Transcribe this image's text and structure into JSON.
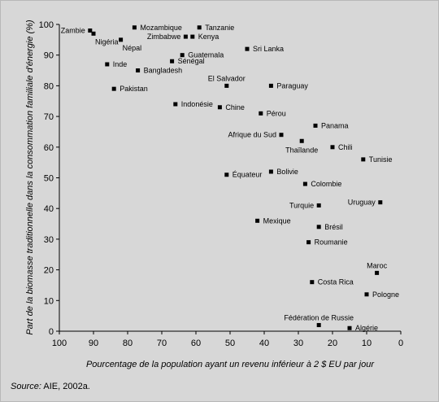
{
  "chart_data": {
    "type": "scatter",
    "xlabel": "Pourcentage de la population ayant un revenu inférieur à 2 $ EU par jour",
    "ylabel": "Part de la biomasse traditionnelle dans la consommation familiale d'énergie (%)",
    "xlim": [
      100,
      0
    ],
    "ylim": [
      0,
      100
    ],
    "x_reversed": true,
    "x_ticks": [
      "100",
      "90",
      "80",
      "70",
      "60",
      "50",
      "40",
      "30",
      "20",
      "10",
      "0"
    ],
    "y_ticks": [
      "0",
      "10",
      "20",
      "30",
      "40",
      "50",
      "60",
      "70",
      "80",
      "90",
      "100"
    ],
    "grid": false,
    "marker_color": "#000000",
    "background_color": "#d7d7d7",
    "points": [
      {
        "name": "Zambie",
        "x": 91,
        "y": 98,
        "label_side": "left"
      },
      {
        "name": "Nigéria",
        "x": 90,
        "y": 97,
        "label_side": "below-right"
      },
      {
        "name": "Mozambique",
        "x": 78,
        "y": 99,
        "label_side": "right"
      },
      {
        "name": "Tanzanie",
        "x": 59,
        "y": 99,
        "label_side": "right"
      },
      {
        "name": "Népal",
        "x": 82,
        "y": 95,
        "label_side": "below-right"
      },
      {
        "name": "Zimbabwe",
        "x": 63,
        "y": 96,
        "label_side": "left"
      },
      {
        "name": "Kenya",
        "x": 61,
        "y": 96,
        "label_side": "right"
      },
      {
        "name": "Sri Lanka",
        "x": 45,
        "y": 92,
        "label_side": "right"
      },
      {
        "name": "Guatemala",
        "x": 64,
        "y": 90,
        "label_side": "right"
      },
      {
        "name": "Inde",
        "x": 86,
        "y": 87,
        "label_side": "right"
      },
      {
        "name": "Sénégal",
        "x": 67,
        "y": 88,
        "label_side": "right"
      },
      {
        "name": "Bangladesh",
        "x": 77,
        "y": 85,
        "label_side": "right"
      },
      {
        "name": "Pakistan",
        "x": 84,
        "y": 79,
        "label_side": "right"
      },
      {
        "name": "El Salvador",
        "x": 51,
        "y": 80,
        "label_side": "above"
      },
      {
        "name": "Paraguay",
        "x": 38,
        "y": 80,
        "label_side": "right"
      },
      {
        "name": "Indonésie",
        "x": 66,
        "y": 74,
        "label_side": "right"
      },
      {
        "name": "Chine",
        "x": 53,
        "y": 73,
        "label_side": "right"
      },
      {
        "name": "Pérou",
        "x": 41,
        "y": 71,
        "label_side": "right"
      },
      {
        "name": "Panama",
        "x": 25,
        "y": 67,
        "label_side": "right"
      },
      {
        "name": "Afrique du Sud",
        "x": 35,
        "y": 64,
        "label_side": "left"
      },
      {
        "name": "Thaïlande",
        "x": 29,
        "y": 62,
        "label_side": "below"
      },
      {
        "name": "Chili",
        "x": 20,
        "y": 60,
        "label_side": "right"
      },
      {
        "name": "Tunisie",
        "x": 11,
        "y": 56,
        "label_side": "right"
      },
      {
        "name": "Bolivie",
        "x": 38,
        "y": 52,
        "label_side": "right"
      },
      {
        "name": "Équateur",
        "x": 51,
        "y": 51,
        "label_side": "right"
      },
      {
        "name": "Colombie",
        "x": 28,
        "y": 48,
        "label_side": "right"
      },
      {
        "name": "Uruguay",
        "x": 6,
        "y": 42,
        "label_side": "left"
      },
      {
        "name": "Turquie",
        "x": 24,
        "y": 41,
        "label_side": "left"
      },
      {
        "name": "Mexique",
        "x": 42,
        "y": 36,
        "label_side": "right"
      },
      {
        "name": "Brésil",
        "x": 24,
        "y": 34,
        "label_side": "right"
      },
      {
        "name": "Roumanie",
        "x": 27,
        "y": 29,
        "label_side": "right"
      },
      {
        "name": "Maroc",
        "x": 7,
        "y": 19,
        "label_side": "above"
      },
      {
        "name": "Costa Rica",
        "x": 26,
        "y": 16,
        "label_side": "right"
      },
      {
        "name": "Pologne",
        "x": 10,
        "y": 12,
        "label_side": "right"
      },
      {
        "name": "Fédération de Russie",
        "x": 24,
        "y": 2,
        "label_side": "above"
      },
      {
        "name": "Algérie",
        "x": 15,
        "y": 1,
        "label_side": "right"
      }
    ]
  },
  "source": {
    "key": "Source:",
    "text": "AIE, 2002a."
  }
}
